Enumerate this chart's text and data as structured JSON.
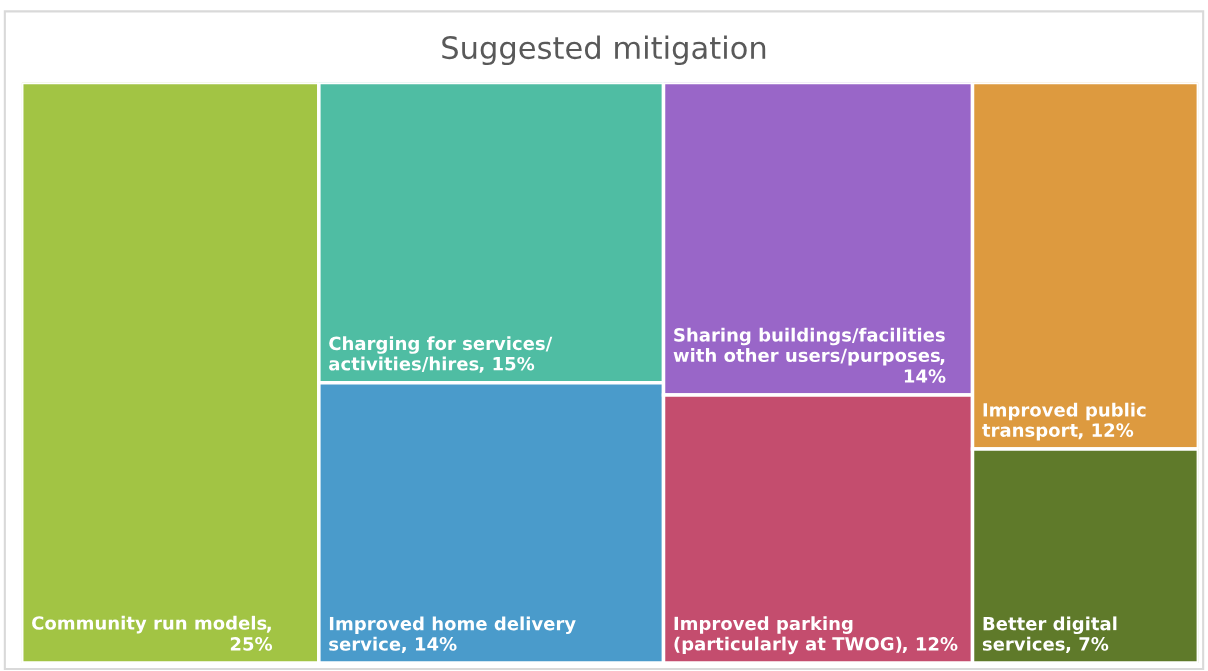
{
  "chart_data": {
    "type": "other",
    "title": "Suggested mitigation",
    "categories": [
      "Community run models",
      "Charging for services/\nactivities/hires",
      "Improved home delivery\nservice",
      "Sharing buildings/facilities\nwith other users/purposes",
      "Improved parking\n(particularly at TWOG)",
      "Improved public\ntransport",
      "Better digital\nservices"
    ],
    "values": [
      25,
      15,
      14,
      14,
      12,
      12,
      7
    ],
    "value_labels": [
      ",\n25%",
      ", 15%",
      ", 14%",
      ",\n14%",
      ", 12%",
      ", 12%",
      ", 7%"
    ],
    "colors": [
      "#a2c444",
      "#4fbda3",
      "#4a9bcb",
      "#9966c8",
      "#c44d6e",
      "#dd9a3f",
      "#5f7a2a"
    ]
  }
}
